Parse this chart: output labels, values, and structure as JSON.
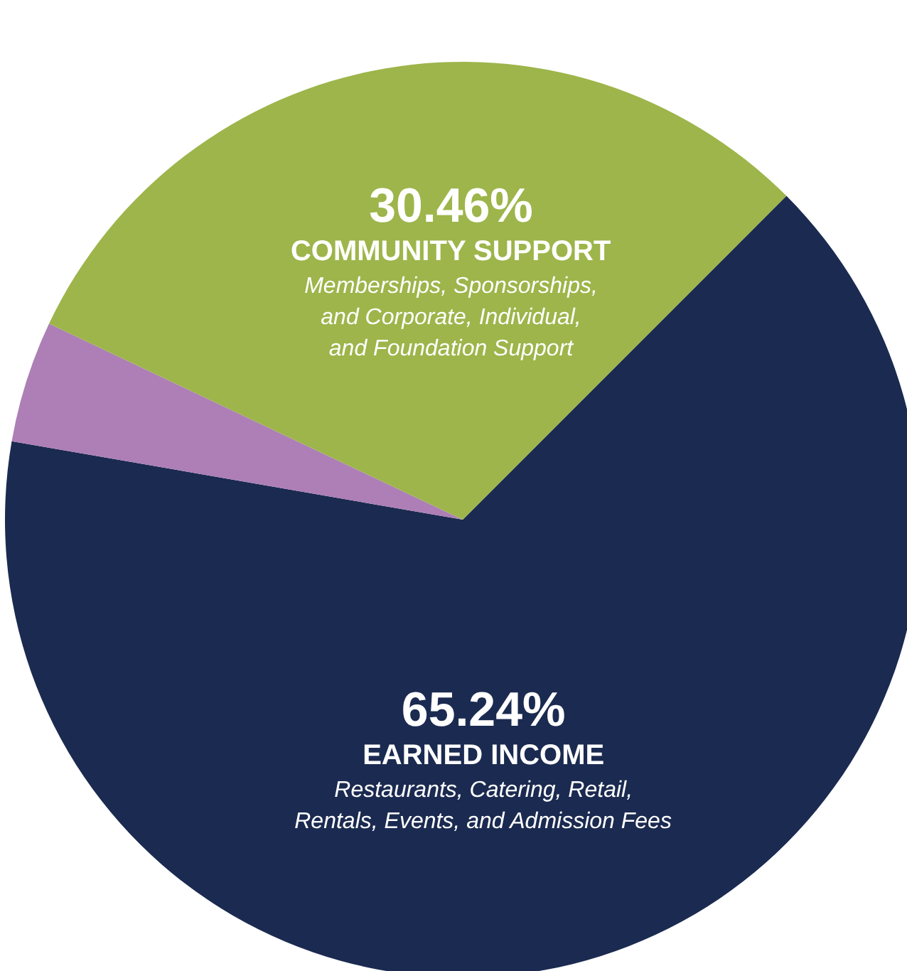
{
  "chart_data": {
    "type": "pie",
    "categories": [
      "EARNED INCOME",
      null,
      "COMMUNITY SUPPORT"
    ],
    "values": [
      65.24,
      4.3,
      30.46
    ],
    "colors": [
      "#1b2a50",
      "#ad7fb6",
      "#9db54a"
    ],
    "value_labels": [
      "65.24%",
      null,
      "30.46%"
    ],
    "annotations": [
      "Restaurants, Catering, Retail,\nRentals, Events, and Admission Fees",
      "Memberships, Sponsorships,\nand Corporate, Individual,\nand Foundation Support"
    ]
  }
}
